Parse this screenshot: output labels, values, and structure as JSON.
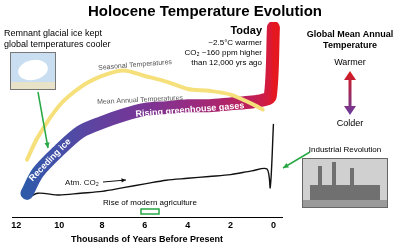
{
  "chart_data": {
    "type": "line",
    "title": "Holocene Temperature Evolution",
    "x_label": "Thousands of Years Before Present",
    "xlim": [
      12.2,
      -0.4
    ],
    "xticks": [
      12,
      10,
      8,
      6,
      4,
      2,
      0
    ],
    "ylim": [
      0,
      105
    ],
    "grid": false,
    "tick_labels": "x",
    "series": [
      {
        "name": "Seasonal Temperatures",
        "color": "#f6e07c",
        "x": [
          11.5,
          11,
          10,
          9,
          8,
          7,
          6,
          5,
          4,
          3,
          2,
          1,
          0.5
        ],
        "values": [
          31,
          43,
          60,
          70,
          76,
          79,
          76,
          73,
          69,
          68,
          66,
          61,
          58
        ]
      },
      {
        "name": "Mean Annual Temperatures",
        "colors": [
          "#2f5aa9",
          "#3856ab",
          "#4450a8",
          "#5648a3",
          "#63409e",
          "#6e3a9a",
          "#7a3595",
          "#87318d",
          "#962c83",
          "#a42874",
          "#b22466",
          "#bf2058",
          "#cc1c48",
          "#d91a36",
          "#e5171f"
        ],
        "x": [
          11.5,
          11,
          10,
          9,
          8,
          7,
          6,
          5,
          4,
          3,
          2,
          1,
          0.5,
          0.15,
          0
        ],
        "values": [
          13,
          24,
          36,
          46,
          51,
          55,
          58,
          59,
          60,
          60,
          61,
          62,
          63,
          65,
          102
        ]
      },
      {
        "name": "Atm. CO₂",
        "color": "#111111",
        "x": [
          11.5,
          11,
          10,
          9,
          8,
          7,
          6,
          5,
          4,
          3,
          2,
          1,
          0.3,
          0.15,
          0
        ],
        "values": [
          10,
          13,
          12,
          13,
          14,
          16,
          18,
          20,
          21,
          22,
          23,
          25,
          26,
          16,
          50
        ]
      }
    ],
    "annotations": [
      [
        "Remnant glacial ice kept",
        "global temperatures cooler"
      ],
      [
        "Receding ice"
      ],
      [
        "Rising greenhouse gases"
      ],
      [
        "Rise of modern agriculture"
      ],
      [
        "Today"
      ],
      [
        "~2.5°C warmer",
        "CO₂ ~160 ppm higher",
        "than 12,000 yrs ago"
      ],
      [
        "Global Mean Annual",
        "Temperature"
      ],
      [
        "Warmer"
      ],
      [
        "Colder"
      ],
      [
        "Industrial Revolution"
      ]
    ]
  }
}
